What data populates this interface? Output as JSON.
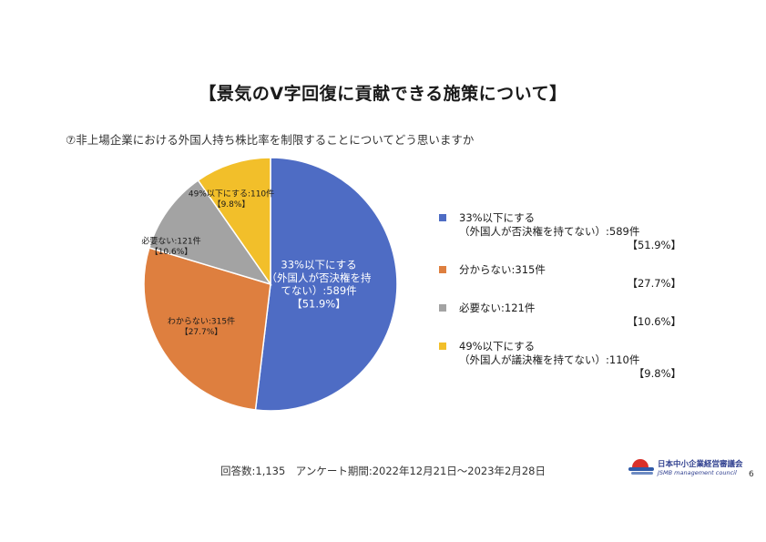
{
  "title": "【景気のV字回復に貢献できる施策について】",
  "question": "⑦非上場企業における外国人持ち株比率を制限することについてどう思いますか",
  "chart_data": {
    "type": "pie",
    "start": "12 o'clock",
    "direction": "clockwise",
    "series": [
      {
        "name": "33%以下にする（外国人が否決権を持てない）",
        "value": 589,
        "percent": 51.9,
        "color": "#4e6cc4",
        "label_lines": [
          "33%以下にする",
          "（外国人が否決権を持",
          "てない）:589件",
          "【51.9%】"
        ],
        "label_color": "#ffffff"
      },
      {
        "name": "分からない",
        "value": 315,
        "percent": 27.7,
        "color": "#de7f3f",
        "label_lines": [
          "わからない:315件",
          "【27.7%】"
        ],
        "label_color": "#1a1a1a"
      },
      {
        "name": "必要ない",
        "value": 121,
        "percent": 10.6,
        "color": "#a3a3a3",
        "label_lines": [
          "必要ない:121件",
          "【10.6%】"
        ],
        "label_color": "#1a1a1a"
      },
      {
        "name": "49%以下にする（外国人が議決権を持てない）",
        "value": 110,
        "percent": 9.8,
        "color": "#f2bf2a",
        "label_lines": [
          "49%以下にする:110件",
          "【9.8%】"
        ],
        "label_color": "#1a1a1a"
      }
    ]
  },
  "legend": [
    {
      "lines": [
        "33%以下にする",
        "（外国人が否決権を持てない）:589件"
      ],
      "pct": "【51.9%】",
      "color": "#4e6cc4"
    },
    {
      "lines": [
        "分からない:315件"
      ],
      "pct": "【27.7%】",
      "color": "#de7f3f"
    },
    {
      "lines": [
        "必要ない:121件"
      ],
      "pct": "【10.6%】",
      "color": "#a3a3a3"
    },
    {
      "lines": [
        "49%以下にする",
        "（外国人が議決権を持てない）:110件"
      ],
      "pct": "【9.8%】",
      "color": "#f2bf2a"
    }
  ],
  "footer": "回答数:1,135　アンケート期間:2022年12月21日～2023年2月28日",
  "logo": {
    "jp": "日本中小企業経営審議会",
    "en": "JSMB management council"
  },
  "page_number": "6"
}
